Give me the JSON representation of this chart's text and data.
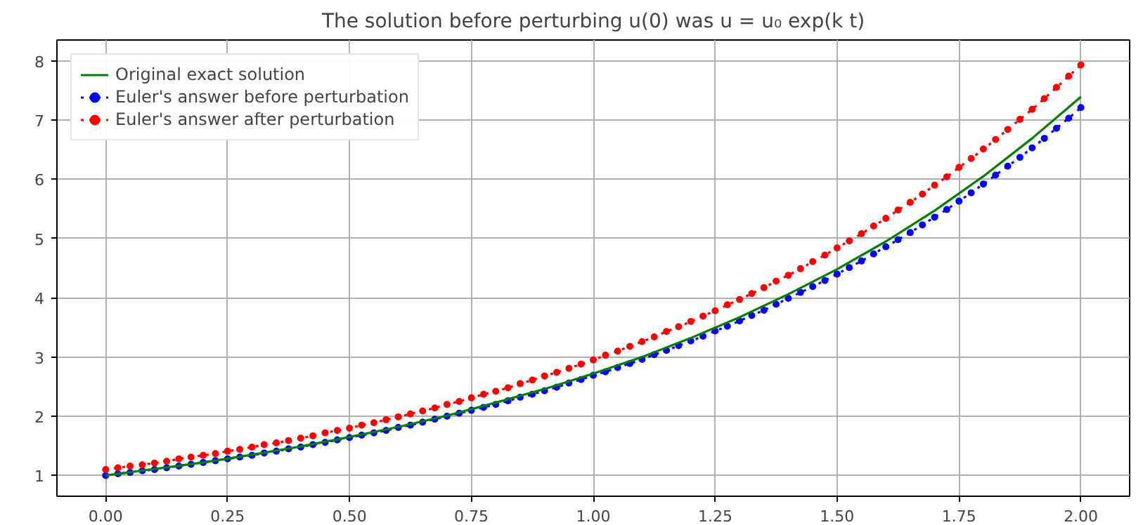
{
  "chart_data": {
    "type": "line",
    "title": "The solution before perturbing u(0) was u = u₀ exp(k t)",
    "x": [
      0,
      0.025,
      0.05,
      0.075,
      0.1,
      0.125,
      0.15,
      0.175,
      0.2,
      0.225,
      0.25,
      0.275,
      0.3,
      0.325,
      0.35,
      0.375,
      0.4,
      0.425,
      0.45,
      0.475,
      0.5,
      0.525,
      0.55,
      0.575,
      0.6,
      0.625,
      0.65,
      0.675,
      0.7,
      0.725,
      0.75,
      0.775,
      0.8,
      0.825,
      0.85,
      0.875,
      0.9,
      0.925,
      0.95,
      0.975,
      1,
      1.025,
      1.05,
      1.075,
      1.1,
      1.125,
      1.15,
      1.175,
      1.2,
      1.225,
      1.25,
      1.275,
      1.3,
      1.325,
      1.35,
      1.375,
      1.4,
      1.425,
      1.45,
      1.475,
      1.5,
      1.525,
      1.55,
      1.575,
      1.6,
      1.625,
      1.65,
      1.675,
      1.7,
      1.725,
      1.75,
      1.775,
      1.8,
      1.825,
      1.85,
      1.875,
      1.9,
      1.925,
      1.95,
      1.975,
      2
    ],
    "series": [
      {
        "name": "Original exact solution",
        "color": "#008000",
        "marker": "none",
        "line_style": "solid",
        "x": [
          0,
          0.1,
          0.2,
          0.3,
          0.4,
          0.5,
          0.6,
          0.7,
          0.8,
          0.9,
          1,
          1.1,
          1.2,
          1.3,
          1.4,
          1.5,
          1.6,
          1.7,
          1.8,
          1.9,
          2
        ],
        "values": [
          1.0,
          1.11,
          1.22,
          1.35,
          1.49,
          1.65,
          1.82,
          2.01,
          2.23,
          2.46,
          2.72,
          3.0,
          3.32,
          3.67,
          4.06,
          4.48,
          4.95,
          5.47,
          6.05,
          6.69,
          7.39
        ]
      },
      {
        "name": "Euler's answer before perturbation",
        "color": "#0000ff",
        "marker": "circle",
        "line_style": "dotted",
        "values": [
          1.0,
          1.03,
          1.05,
          1.08,
          1.1,
          1.13,
          1.16,
          1.19,
          1.22,
          1.25,
          1.28,
          1.31,
          1.34,
          1.38,
          1.41,
          1.45,
          1.48,
          1.52,
          1.56,
          1.6,
          1.64,
          1.68,
          1.72,
          1.76,
          1.81,
          1.85,
          1.9,
          1.95,
          2.0,
          2.05,
          2.1,
          2.15,
          2.2,
          2.26,
          2.32,
          2.37,
          2.43,
          2.49,
          2.56,
          2.62,
          2.69,
          2.75,
          2.82,
          2.89,
          2.96,
          3.04,
          3.11,
          3.19,
          3.27,
          3.35,
          3.44,
          3.52,
          3.61,
          3.7,
          3.79,
          3.89,
          3.99,
          4.09,
          4.19,
          4.29,
          4.4,
          4.51,
          4.62,
          4.74,
          4.86,
          4.98,
          5.1,
          5.23,
          5.36,
          5.49,
          5.63,
          5.77,
          5.92,
          6.07,
          6.22,
          6.37,
          6.53,
          6.69,
          6.86,
          7.03,
          7.21
        ]
      },
      {
        "name": "Euler's answer after perturbation",
        "color": "#ff0000",
        "marker": "circle",
        "line_style": "dotted",
        "values": [
          1.1,
          1.13,
          1.16,
          1.18,
          1.21,
          1.24,
          1.28,
          1.31,
          1.34,
          1.37,
          1.41,
          1.44,
          1.48,
          1.52,
          1.55,
          1.59,
          1.63,
          1.67,
          1.72,
          1.76,
          1.8,
          1.85,
          1.89,
          1.94,
          1.99,
          2.04,
          2.09,
          2.14,
          2.2,
          2.25,
          2.31,
          2.37,
          2.42,
          2.48,
          2.55,
          2.61,
          2.68,
          2.74,
          2.81,
          2.88,
          2.95,
          3.03,
          3.1,
          3.18,
          3.26,
          3.34,
          3.43,
          3.51,
          3.6,
          3.69,
          3.78,
          3.88,
          3.97,
          4.07,
          4.17,
          4.28,
          4.38,
          4.49,
          4.61,
          4.72,
          4.84,
          4.96,
          5.08,
          5.21,
          5.34,
          5.48,
          5.61,
          5.75,
          5.9,
          6.04,
          6.2,
          6.35,
          6.51,
          6.67,
          6.84,
          7.01,
          7.18,
          7.36,
          7.55,
          7.74,
          7.93
        ]
      }
    ],
    "xlim": [
      -0.1,
      2.1
    ],
    "ylim": [
      0.65,
      8.35
    ],
    "xticks": [
      {
        "value": 0,
        "label": "0.00"
      },
      {
        "value": 0.25,
        "label": "0.25"
      },
      {
        "value": 0.5,
        "label": "0.50"
      },
      {
        "value": 0.75,
        "label": "0.75"
      },
      {
        "value": 1,
        "label": "1.00"
      },
      {
        "value": 1.25,
        "label": "1.25"
      },
      {
        "value": 1.5,
        "label": "1.50"
      },
      {
        "value": 1.75,
        "label": "1.75"
      },
      {
        "value": 2,
        "label": "2.00"
      }
    ],
    "yticks": [
      1,
      2,
      3,
      4,
      5,
      6,
      7,
      8
    ],
    "grid": true,
    "legend": "top left"
  }
}
